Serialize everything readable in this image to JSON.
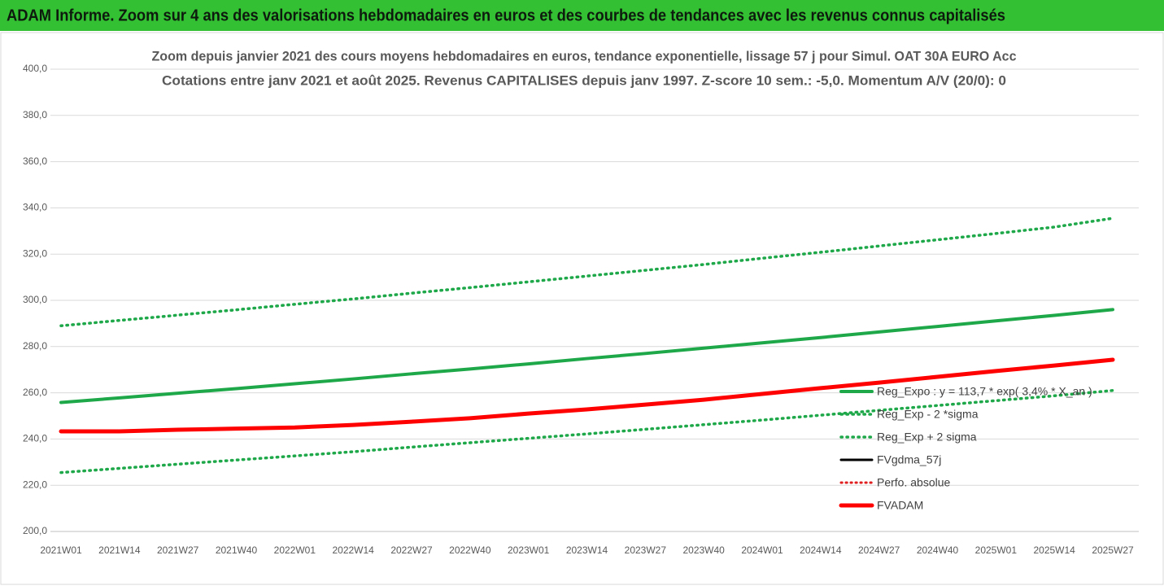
{
  "header": {
    "title": "ADAM Informe. Zoom sur 4 ans des valorisations hebdomadaires en euros et des courbes de tendances avec les revenus connus capitalisés"
  },
  "chart_data": {
    "type": "line",
    "title": "Zoom depuis janvier 2021 des cours moyens hebdomadaires en euros, tendance exponentielle, lissage 57 j pour Simul. OAT 30A EURO Acc",
    "subtitle": "Cotations entre janv 2021 et août 2025. Revenus CAPITALISES depuis janv 1997. Z-score 10 sem.: -5,0. Momentum A/V (20/0): 0",
    "categories": [
      "2021W01",
      "2021W14",
      "2021W27",
      "2021W40",
      "2022W01",
      "2022W14",
      "2022W27",
      "2022W40",
      "2023W01",
      "2023W14",
      "2023W27",
      "2023W40",
      "2024W01",
      "2024W14",
      "2024W27",
      "2024W40",
      "2025W01",
      "2025W14",
      "2025W27"
    ],
    "ylim": [
      200,
      400
    ],
    "yticks": [
      {
        "value": 200,
        "label": "200,0"
      },
      {
        "value": 220,
        "label": "220,0"
      },
      {
        "value": 240,
        "label": "240,0"
      },
      {
        "value": 260,
        "label": "260,0"
      },
      {
        "value": 280,
        "label": "280,0"
      },
      {
        "value": 300,
        "label": "300,0"
      },
      {
        "value": 320,
        "label": "320,0"
      },
      {
        "value": 340,
        "label": "340,0"
      },
      {
        "value": 360,
        "label": "360,0"
      },
      {
        "value": 380,
        "label": "380,0"
      },
      {
        "value": 400,
        "label": "400,0"
      }
    ],
    "grid": true,
    "legend": "right",
    "series": [
      {
        "name": "Reg_Expo : y = 113,7 * exp( 3,4% * X_an )",
        "color": "#1fa84a",
        "style": "solid",
        "width": 4,
        "values": [
          255.8,
          257.8,
          259.8,
          261.8,
          263.9,
          266.0,
          268.2,
          270.3,
          272.5,
          274.8,
          277.0,
          279.3,
          281.6,
          283.9,
          286.3,
          288.7,
          291.1,
          293.5,
          296.0
        ]
      },
      {
        "name": "Reg_Exp - 2 *sigma",
        "color": "#1fa84a",
        "style": "dotted",
        "width": 3.5,
        "values": [
          225.5,
          227.3,
          229.1,
          230.9,
          232.7,
          234.5,
          236.5,
          238.4,
          240.3,
          242.2,
          244.2,
          246.2,
          248.2,
          250.3,
          252.4,
          254.5,
          256.6,
          258.7,
          261.0
        ]
      },
      {
        "name": "Reg_Exp + 2 sigma",
        "color": "#1fa84a",
        "style": "dotted",
        "width": 3.5,
        "values": [
          289.0,
          291.3,
          293.6,
          295.9,
          298.3,
          300.6,
          303.1,
          305.5,
          308.0,
          310.5,
          313.0,
          315.5,
          318.2,
          320.8,
          323.5,
          326.2,
          328.9,
          331.7,
          335.5
        ]
      },
      {
        "name": "FVgdma_57j",
        "color": "#000000",
        "style": "solid",
        "width": 3,
        "values": [
          243.3,
          243.3,
          244.0,
          244.5,
          245.0,
          246.1,
          247.5,
          249.0,
          251.0,
          252.8,
          254.9,
          257.0,
          259.5,
          262.0,
          264.4,
          266.9,
          269.4,
          271.8,
          274.3
        ]
      },
      {
        "name": "Perfo. absolue",
        "color": "#e02020",
        "style": "dotted",
        "width": 3,
        "values": [
          243.3,
          243.3,
          244.0,
          244.5,
          245.0,
          246.1,
          247.5,
          249.0,
          251.0,
          252.8,
          254.9,
          257.0,
          259.5,
          262.0,
          264.4,
          266.9,
          269.4,
          271.8,
          274.3
        ]
      },
      {
        "name": "FVADAM",
        "color": "#ff0000",
        "style": "solid",
        "width": 5,
        "values": [
          243.3,
          243.3,
          244.0,
          244.5,
          245.0,
          246.1,
          247.5,
          249.0,
          251.0,
          252.8,
          254.9,
          257.0,
          259.5,
          262.0,
          264.4,
          266.9,
          269.4,
          271.8,
          274.3
        ]
      }
    ]
  }
}
